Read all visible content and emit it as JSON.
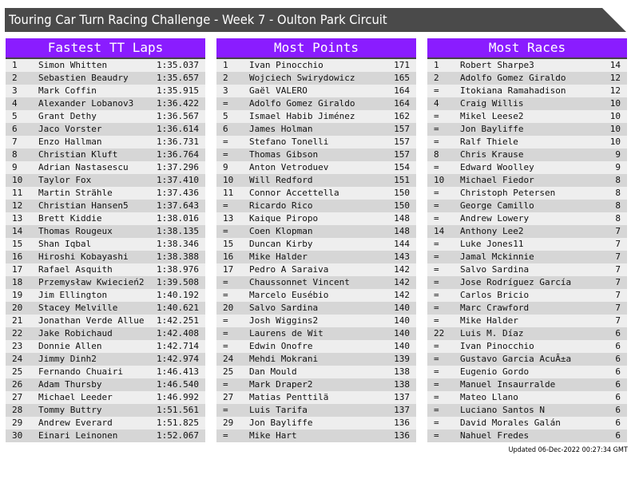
{
  "title": "Touring Car Turn Racing Challenge - Week 7 - Oulton Park Circuit",
  "colors": {
    "header_bg": "#8a1cff",
    "title_bg": "#4a4a4a",
    "row_light": "#eeeeee",
    "row_dark": "#d6d6d6"
  },
  "tables": [
    {
      "heading": "Fastest TT Laps",
      "rows": [
        [
          "1",
          "Simon Whitten",
          "1:35.037"
        ],
        [
          "2",
          "Sebastien Beaudry",
          "1:35.657"
        ],
        [
          "3",
          "Mark Coffin",
          "1:35.915"
        ],
        [
          "4",
          "Alexander Lobanov3",
          "1:36.422"
        ],
        [
          "5",
          "Grant Dethy",
          "1:36.567"
        ],
        [
          "6",
          "Jaco Vorster",
          "1:36.614"
        ],
        [
          "7",
          "Enzo Hallman",
          "1:36.731"
        ],
        [
          "8",
          "Christian Kluft",
          "1:36.764"
        ],
        [
          "9",
          "Adrian Nastasescu",
          "1:37.296"
        ],
        [
          "10",
          "Taylor Fox",
          "1:37.410"
        ],
        [
          "11",
          "Martin Strähle",
          "1:37.436"
        ],
        [
          "12",
          "Christian Hansen5",
          "1:37.643"
        ],
        [
          "13",
          "Brett Kiddie",
          "1:38.016"
        ],
        [
          "14",
          "Thomas Rougeux",
          "1:38.135"
        ],
        [
          "15",
          "Shan Iqbal",
          "1:38.346"
        ],
        [
          "16",
          "Hiroshi Kobayashi",
          "1:38.388"
        ],
        [
          "17",
          "Rafael Asquith",
          "1:38.976"
        ],
        [
          "18",
          "Przemysław Kwiecień2",
          "1:39.508"
        ],
        [
          "19",
          "Jim Ellington",
          "1:40.192"
        ],
        [
          "20",
          "Stacey Melville",
          "1:40.621"
        ],
        [
          "21",
          "Jonathan Verde Allue",
          "1:42.251"
        ],
        [
          "22",
          "Jake Robichaud",
          "1:42.408"
        ],
        [
          "23",
          "Donnie Allen",
          "1:42.714"
        ],
        [
          "24",
          "Jimmy Dinh2",
          "1:42.974"
        ],
        [
          "25",
          "Fernando Chuairi",
          "1:46.413"
        ],
        [
          "26",
          "Adam Thursby",
          "1:46.540"
        ],
        [
          "27",
          "Michael Leeder",
          "1:46.992"
        ],
        [
          "28",
          "Tommy Buttry",
          "1:51.561"
        ],
        [
          "29",
          "Andrew Everard",
          "1:51.825"
        ],
        [
          "30",
          "Einari Leinonen",
          "1:52.067"
        ]
      ]
    },
    {
      "heading": "Most Points",
      "rows": [
        [
          "1",
          "Ivan Pinocchio",
          "171"
        ],
        [
          "2",
          "Wojciech Swirydowicz",
          "165"
        ],
        [
          "3",
          "Gaël VALERO",
          "164"
        ],
        [
          "=",
          "Adolfo Gomez Giraldo",
          "164"
        ],
        [
          "5",
          "Ismael Habib Jiménez",
          "162"
        ],
        [
          "6",
          "James Holman",
          "157"
        ],
        [
          "=",
          "Stefano Tonelli",
          "157"
        ],
        [
          "=",
          "Thomas Gibson",
          "157"
        ],
        [
          "9",
          "Anton Vetroduev",
          "154"
        ],
        [
          "10",
          "Will Redford",
          "151"
        ],
        [
          "11",
          "Connor Accettella",
          "150"
        ],
        [
          "=",
          "Ricardo Rico",
          "150"
        ],
        [
          "13",
          "Kaique Piropo",
          "148"
        ],
        [
          "=",
          "Coen Klopman",
          "148"
        ],
        [
          "15",
          "Duncan Kirby",
          "144"
        ],
        [
          "16",
          "Mike Halder",
          "143"
        ],
        [
          "17",
          "Pedro A Saraiva",
          "142"
        ],
        [
          "=",
          "Chaussonnet Vincent",
          "142"
        ],
        [
          "=",
          "Marcelo Eusébio",
          "142"
        ],
        [
          "20",
          "Salvo Sardina",
          "140"
        ],
        [
          "=",
          "Josh Wiggins2",
          "140"
        ],
        [
          "=",
          "Laurens de Wit",
          "140"
        ],
        [
          "=",
          "Edwin Onofre",
          "140"
        ],
        [
          "24",
          "Mehdi Mokrani",
          "139"
        ],
        [
          "25",
          "Dan Mould",
          "138"
        ],
        [
          "=",
          "Mark Draper2",
          "138"
        ],
        [
          "27",
          "Matias Penttilä",
          "137"
        ],
        [
          "=",
          "Luis Tarifa",
          "137"
        ],
        [
          "29",
          "Jon Bayliffe",
          "136"
        ],
        [
          "=",
          "Mike Hart",
          "136"
        ]
      ]
    },
    {
      "heading": "Most Races",
      "rows": [
        [
          "1",
          "Robert Sharpe3",
          "14"
        ],
        [
          "2",
          "Adolfo Gomez Giraldo",
          "12"
        ],
        [
          "=",
          "Itokiana Ramahadison",
          "12"
        ],
        [
          "4",
          "Craig Willis",
          "10"
        ],
        [
          "=",
          "Mikel Leese2",
          "10"
        ],
        [
          "=",
          "Jon Bayliffe",
          "10"
        ],
        [
          "=",
          "Ralf Thiele",
          "10"
        ],
        [
          "8",
          "Chris Krause",
          "9"
        ],
        [
          "=",
          "Edward Woolley",
          "9"
        ],
        [
          "10",
          "Michael Fiedor",
          "8"
        ],
        [
          "=",
          "Christoph Petersen",
          "8"
        ],
        [
          "=",
          "George Camillo",
          "8"
        ],
        [
          "=",
          "Andrew Lowery",
          "8"
        ],
        [
          "14",
          "Anthony Lee2",
          "7"
        ],
        [
          "=",
          "Luke Jones11",
          "7"
        ],
        [
          "=",
          "Jamal Mckinnie",
          "7"
        ],
        [
          "=",
          "Salvo Sardina",
          "7"
        ],
        [
          "=",
          "Jose Rodríguez García",
          "7"
        ],
        [
          "=",
          "Carlos Bricio",
          "7"
        ],
        [
          "=",
          "Marc Crawford",
          "7"
        ],
        [
          "=",
          "Mike Halder",
          "7"
        ],
        [
          "22",
          "Luis M. Díaz",
          "6"
        ],
        [
          "=",
          "Ivan Pinocchio",
          "6"
        ],
        [
          "=",
          "Gustavo Garcia AcuÃ±a",
          "6"
        ],
        [
          "=",
          "Eugenio Gordo",
          "6"
        ],
        [
          "=",
          "Manuel Insaurralde",
          "6"
        ],
        [
          "=",
          "Mateo Llano",
          "6"
        ],
        [
          "=",
          "Luciano Santos N",
          "6"
        ],
        [
          "=",
          "David Morales Galán",
          "6"
        ],
        [
          "=",
          "Nahuel Fredes",
          "6"
        ]
      ]
    }
  ],
  "footer": "Updated 06-Dec-2022 00:27:34 GMT"
}
